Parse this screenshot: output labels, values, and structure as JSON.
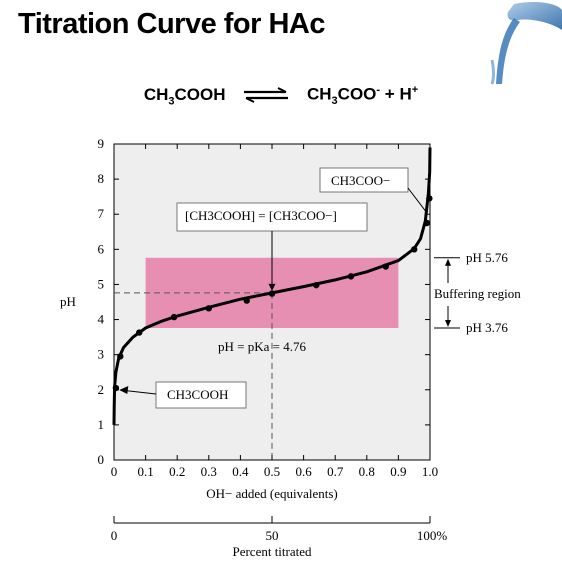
{
  "title": "Titration Curve for HAc",
  "equation": {
    "reactant": [
      "CH",
      "3",
      "COOH"
    ],
    "product": [
      "CH",
      "3",
      "COO",
      "-",
      " + H",
      "+"
    ]
  },
  "colors": {
    "buffer_region": "#e78fb3",
    "plot_background": "#eeeeee",
    "curve": "#000000"
  },
  "chart_data": {
    "type": "line",
    "title": "",
    "xlabel": "OH− added (equivalents)",
    "ylabel": "pH",
    "xlim": [
      0,
      1.0
    ],
    "ylim": [
      0,
      9
    ],
    "x_ticks": [
      "0",
      "0.1",
      "0.2",
      "0.3",
      "0.4",
      "0.5",
      "0.6",
      "0.7",
      "0.8",
      "0.9",
      "1.0"
    ],
    "y_ticks": [
      "0",
      "1",
      "2",
      "3",
      "4",
      "5",
      "6",
      "7",
      "8",
      "9"
    ],
    "grid": false,
    "curve": [
      [
        0.0,
        1.0
      ],
      [
        0.0005,
        1.5
      ],
      [
        0.002,
        2.1
      ],
      [
        0.006,
        2.5
      ],
      [
        0.015,
        2.9
      ],
      [
        0.03,
        3.2
      ],
      [
        0.06,
        3.5
      ],
      [
        0.1,
        3.76
      ],
      [
        0.15,
        3.95
      ],
      [
        0.2,
        4.1
      ],
      [
        0.3,
        4.35
      ],
      [
        0.4,
        4.58
      ],
      [
        0.5,
        4.76
      ],
      [
        0.6,
        4.94
      ],
      [
        0.7,
        5.13
      ],
      [
        0.8,
        5.36
      ],
      [
        0.9,
        5.68
      ],
      [
        0.95,
        6.02
      ],
      [
        0.97,
        6.3
      ],
      [
        0.985,
        6.8
      ],
      [
        0.995,
        7.6
      ],
      [
        0.999,
        8.2
      ],
      [
        1.0,
        8.9
      ]
    ],
    "points": [
      {
        "x": 0.006,
        "y": 2.05
      },
      {
        "x": 0.02,
        "y": 2.95
      },
      {
        "x": 0.08,
        "y": 3.63
      },
      {
        "x": 0.19,
        "y": 4.07
      },
      {
        "x": 0.3,
        "y": 4.32
      },
      {
        "x": 0.42,
        "y": 4.54
      },
      {
        "x": 0.5,
        "y": 4.74
      },
      {
        "x": 0.64,
        "y": 4.98
      },
      {
        "x": 0.75,
        "y": 5.23
      },
      {
        "x": 0.86,
        "y": 5.51
      },
      {
        "x": 0.95,
        "y": 6.0
      },
      {
        "x": 0.99,
        "y": 6.75
      },
      {
        "x": 0.998,
        "y": 7.45
      }
    ],
    "buffer_region": {
      "x": [
        0.1,
        0.9
      ],
      "pH": [
        3.76,
        5.76
      ]
    },
    "pka_marker": {
      "x": 0.5,
      "pH": 4.76
    },
    "annotations": {
      "acid_label": "CH3COOH",
      "base_label": "CH3COO−",
      "equal_label": "[CH3COOH] = [CH3COO−]",
      "pka_label": "pH = pKa = 4.76",
      "upper_label": "pH 5.76",
      "lower_label": "pH 3.76",
      "region_label": "Buffering region"
    },
    "secondary_axis": {
      "label": "Percent titrated",
      "ticks": [
        "0",
        "50",
        "100%"
      ],
      "values": [
        0,
        50,
        100
      ]
    }
  }
}
